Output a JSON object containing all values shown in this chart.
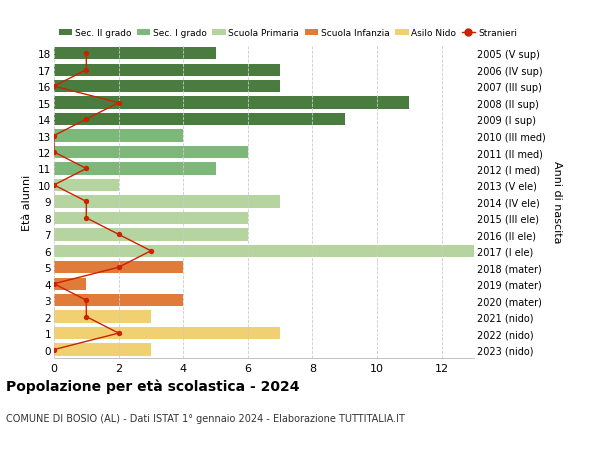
{
  "ages": [
    18,
    17,
    16,
    15,
    14,
    13,
    12,
    11,
    10,
    9,
    8,
    7,
    6,
    5,
    4,
    3,
    2,
    1,
    0
  ],
  "right_labels": [
    "2005 (V sup)",
    "2006 (IV sup)",
    "2007 (III sup)",
    "2008 (II sup)",
    "2009 (I sup)",
    "2010 (III med)",
    "2011 (II med)",
    "2012 (I med)",
    "2013 (V ele)",
    "2014 (IV ele)",
    "2015 (III ele)",
    "2016 (II ele)",
    "2017 (I ele)",
    "2018 (mater)",
    "2019 (mater)",
    "2020 (mater)",
    "2021 (nido)",
    "2022 (nido)",
    "2023 (nido)"
  ],
  "bar_values": [
    5,
    7,
    7,
    11,
    9,
    4,
    6,
    5,
    2,
    7,
    6,
    6,
    13,
    4,
    1,
    4,
    3,
    7,
    3
  ],
  "bar_colors": [
    "#4a7c3f",
    "#4a7c3f",
    "#4a7c3f",
    "#4a7c3f",
    "#4a7c3f",
    "#7db87a",
    "#7db87a",
    "#7db87a",
    "#b5d4a0",
    "#b5d4a0",
    "#b5d4a0",
    "#b5d4a0",
    "#b5d4a0",
    "#e07b3a",
    "#e07b3a",
    "#e07b3a",
    "#f0d070",
    "#f0d070",
    "#f0d070"
  ],
  "stranieri_x": [
    1,
    1,
    0,
    2,
    1,
    0,
    0,
    1,
    0,
    1,
    1,
    2,
    3,
    2,
    0,
    1,
    1,
    2,
    0
  ],
  "legend_labels": [
    "Sec. II grado",
    "Sec. I grado",
    "Scuola Primaria",
    "Scuola Infanzia",
    "Asilo Nido",
    "Stranieri"
  ],
  "legend_colors": [
    "#4a7c3f",
    "#7db87a",
    "#b5d4a0",
    "#e07b3a",
    "#f0d070",
    "#cc2200"
  ],
  "title": "Popolazione per età scolastica - 2024",
  "subtitle": "COMUNE DI BOSIO (AL) - Dati ISTAT 1° gennaio 2024 - Elaborazione TUTTITALIA.IT",
  "ylabel_left": "Età alunni",
  "ylabel_right": "Anni di nascita",
  "background_color": "#ffffff",
  "grid_color": "#cccccc",
  "bar_height": 0.75,
  "xlim": [
    0,
    13
  ],
  "ylim": [
    -0.5,
    18.5
  ],
  "xticks": [
    0,
    2,
    4,
    6,
    8,
    10,
    12
  ]
}
